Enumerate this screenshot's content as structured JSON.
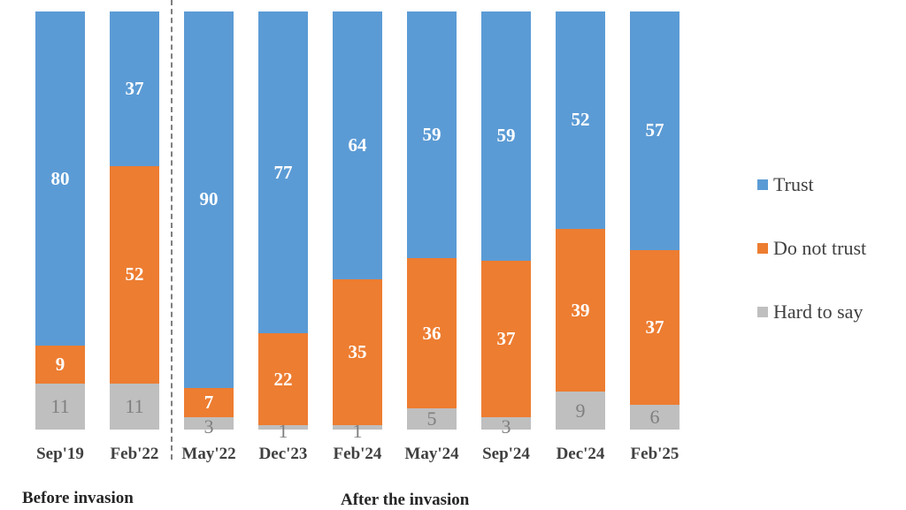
{
  "chart_data": {
    "type": "bar",
    "stacked": true,
    "percent_stacked": true,
    "title": "",
    "xlabel": "",
    "ylabel": "",
    "ylim": [
      0,
      100
    ],
    "categories": [
      "Sep'19",
      "Feb'22",
      "May'22",
      "Dec'23",
      "Feb'24",
      "May'24",
      "Sep'24",
      "Dec'24",
      "Feb'25"
    ],
    "series": [
      {
        "name": "Hard to say",
        "color": "#bfbfbf",
        "values": [
          11,
          11,
          3,
          1,
          1,
          5,
          3,
          9,
          6
        ]
      },
      {
        "name": "Do not trust",
        "color": "#ed7d31",
        "values": [
          9,
          52,
          7,
          22,
          35,
          36,
          37,
          39,
          37
        ]
      },
      {
        "name": "Trust",
        "color": "#5b9bd5",
        "values": [
          80,
          37,
          90,
          77,
          64,
          59,
          59,
          52,
          57
        ]
      }
    ],
    "legend": {
      "position": "right",
      "entries": [
        "Trust",
        "Do not trust",
        "Hard to say"
      ]
    },
    "grid": false,
    "annotations": [
      {
        "text": "Before invasion",
        "spans": [
          "Sep'19",
          "Feb'22"
        ]
      },
      {
        "text": "After the invasion",
        "spans": [
          "May'22",
          "Feb'25"
        ]
      }
    ],
    "divider": {
      "style": "dashed",
      "between": [
        "Feb'22",
        "May'22"
      ]
    }
  },
  "groups": {
    "before": "Before invasion",
    "after": "After the invasion"
  },
  "legend": {
    "trust": "Trust",
    "distrust": "Do not trust",
    "hard": "Hard to say"
  },
  "colors": {
    "trust": "#5b9bd5",
    "distrust": "#ed7d31",
    "hard": "#bfbfbf"
  }
}
